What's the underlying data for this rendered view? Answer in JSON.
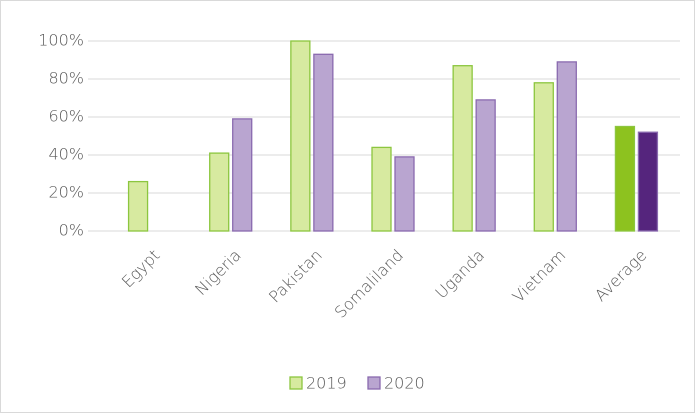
{
  "chart_data": {
    "type": "bar",
    "categories": [
      "Egypt",
      "Nigeria",
      "Pakistan",
      "Somaliland",
      "Uganda",
      "Vietnam",
      "Average"
    ],
    "series": [
      {
        "name": "2019",
        "color": "#d7eaa0",
        "edge_color": "#8cc63f",
        "colors": [
          "#d7eaa0",
          "#d7eaa0",
          "#d7eaa0",
          "#d7eaa0",
          "#d7eaa0",
          "#d7eaa0",
          "#8dc21f"
        ],
        "values": [
          26,
          41,
          100,
          44,
          87,
          78,
          55
        ]
      },
      {
        "name": "2020",
        "color": "#b9a5d0",
        "edge_color": "#8a6aaf",
        "colors": [
          "#b9a5d0",
          "#b9a5d0",
          "#b9a5d0",
          "#b9a5d0",
          "#b9a5d0",
          "#b9a5d0",
          "#55257d"
        ],
        "values": [
          null,
          59,
          93,
          39,
          69,
          89,
          52
        ]
      }
    ],
    "ylim": [
      0,
      100
    ],
    "yticks": [
      {
        "value": 0,
        "label": "0%"
      },
      {
        "value": 20,
        "label": "20%"
      },
      {
        "value": 40,
        "label": "40%"
      },
      {
        "value": 60,
        "label": "60%"
      },
      {
        "value": 80,
        "label": "80%"
      },
      {
        "value": 100,
        "label": "100%"
      }
    ],
    "grid": true,
    "legend": "bottom"
  }
}
